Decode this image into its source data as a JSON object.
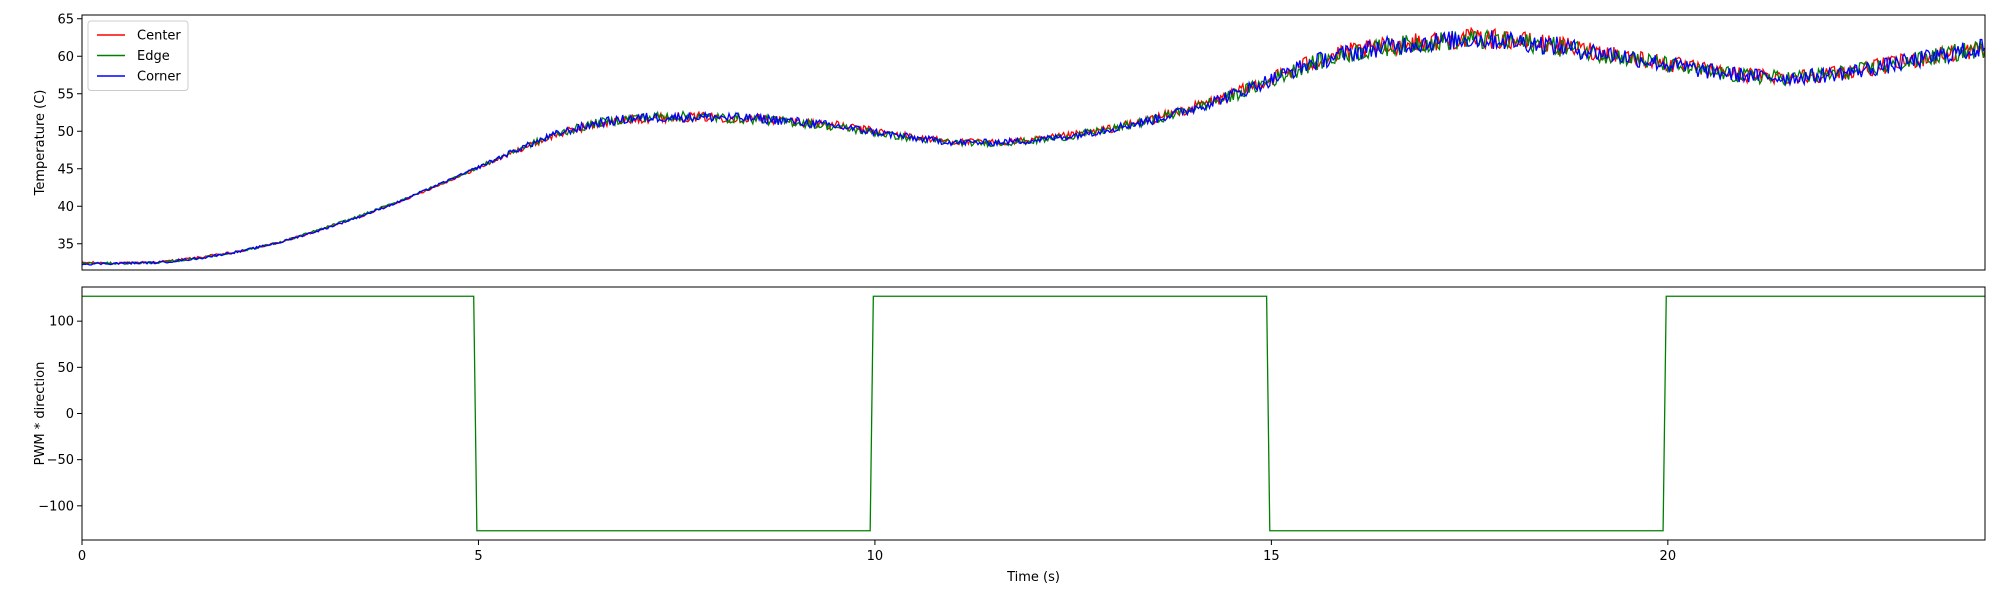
{
  "chart_data": [
    {
      "type": "line",
      "panel": "temperature",
      "title": "",
      "xlabel": "",
      "ylabel": "Temperature (C)",
      "xlim": [
        0,
        24
      ],
      "ylim": [
        31.5,
        65.5
      ],
      "yticks": [
        35,
        40,
        45,
        50,
        55,
        60,
        65
      ],
      "xticks_visible": false,
      "grid": false,
      "legend": {
        "placement": "top-left"
      },
      "x": [
        0,
        0.5,
        1,
        1.5,
        2,
        2.5,
        3,
        3.5,
        4,
        4.5,
        5,
        5.5,
        6,
        6.5,
        7,
        7.5,
        8,
        8.5,
        9,
        9.5,
        10,
        10.5,
        11,
        11.5,
        12,
        12.5,
        13,
        13.5,
        14,
        14.5,
        15,
        15.5,
        16,
        16.5,
        17,
        17.5,
        18,
        18.5,
        19,
        19.5,
        20,
        20.5,
        21,
        21.5,
        22,
        22.5,
        23,
        23.5,
        24
      ],
      "series": [
        {
          "name": "Center",
          "color": "#ff0000",
          "values": [
            32.5,
            32.4,
            32.6,
            33.2,
            34.0,
            35.2,
            36.8,
            38.6,
            40.6,
            42.8,
            45.1,
            47.5,
            49.6,
            51.0,
            51.7,
            51.9,
            51.9,
            51.7,
            51.3,
            50.8,
            50.0,
            49.2,
            48.6,
            48.5,
            48.8,
            49.5,
            50.4,
            51.6,
            53.1,
            54.8,
            57.0,
            59.2,
            60.6,
            61.4,
            62.0,
            62.4,
            62.2,
            61.6,
            60.8,
            60.0,
            59.0,
            58.1,
            57.5,
            57.2,
            57.6,
            58.3,
            59.3,
            60.3,
            61.0
          ]
        },
        {
          "name": "Edge",
          "color": "#008000",
          "values": [
            32.4,
            32.4,
            32.5,
            33.1,
            34.0,
            35.2,
            36.9,
            38.7,
            40.7,
            42.9,
            45.2,
            47.6,
            49.7,
            51.1,
            51.8,
            52.0,
            51.8,
            51.6,
            51.2,
            50.6,
            49.8,
            49.0,
            48.5,
            48.4,
            48.7,
            49.4,
            50.3,
            51.5,
            53.0,
            54.7,
            56.8,
            59.0,
            60.4,
            61.3,
            61.9,
            62.2,
            62.0,
            61.4,
            60.6,
            59.8,
            58.8,
            57.9,
            57.3,
            57.1,
            57.5,
            58.2,
            59.2,
            60.2,
            61.1
          ]
        },
        {
          "name": "Corner",
          "color": "#0000ff",
          "values": [
            32.3,
            32.4,
            32.5,
            33.1,
            34.0,
            35.2,
            36.8,
            38.6,
            40.6,
            42.9,
            45.2,
            47.6,
            49.7,
            51.1,
            51.8,
            51.9,
            51.9,
            51.7,
            51.3,
            50.7,
            49.9,
            49.1,
            48.5,
            48.5,
            48.8,
            49.4,
            50.4,
            51.5,
            53.0,
            54.8,
            56.9,
            59.1,
            60.5,
            61.4,
            61.9,
            62.3,
            62.1,
            61.5,
            60.7,
            59.9,
            58.9,
            58.0,
            57.4,
            57.1,
            57.5,
            58.2,
            59.2,
            60.2,
            61.2
          ]
        }
      ]
    },
    {
      "type": "line",
      "panel": "pwm",
      "title": "",
      "xlabel": "Time (s)",
      "ylabel": "PWM * direction",
      "xlim": [
        0,
        24
      ],
      "ylim": [
        -137,
        137
      ],
      "yticks": [
        -100,
        -50,
        0,
        50,
        100
      ],
      "xticks": [
        0,
        5,
        10,
        15,
        20
      ],
      "grid": false,
      "series": [
        {
          "color": "#008000",
          "x": [
            0,
            4.94,
            4.98,
            9.94,
            9.98,
            14.94,
            14.98,
            19.94,
            19.98,
            24
          ],
          "values": [
            127,
            127,
            -127,
            -127,
            127,
            127,
            -127,
            -127,
            127,
            127
          ]
        }
      ]
    }
  ]
}
